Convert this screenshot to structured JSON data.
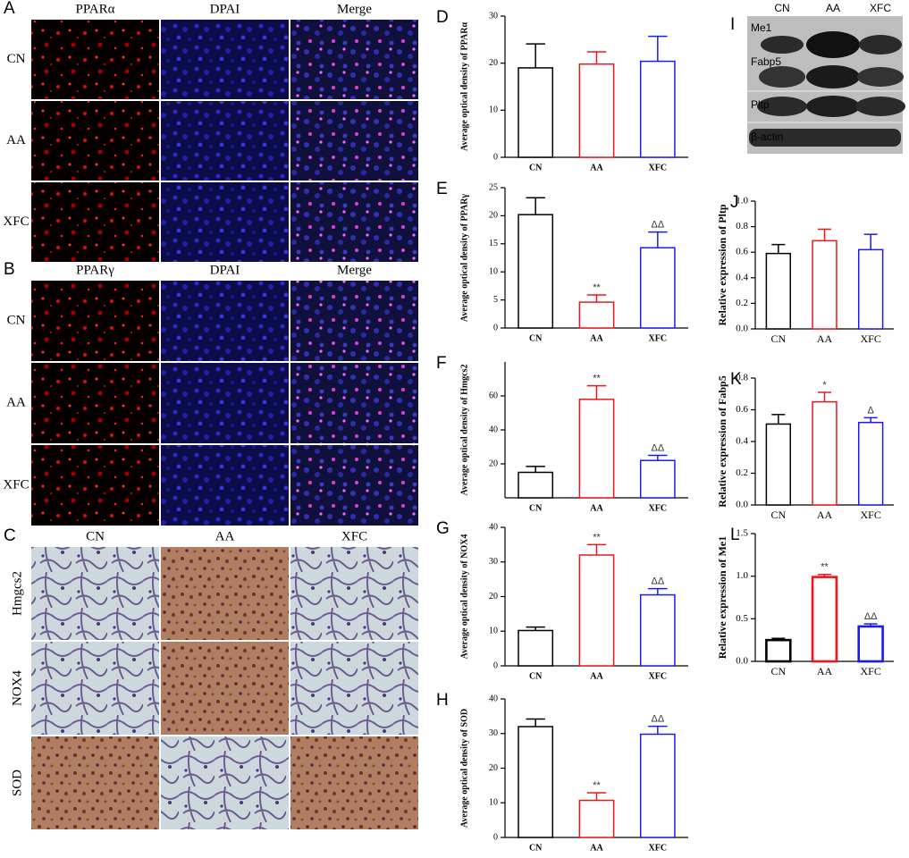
{
  "micrographs": [
    {
      "letter": "A",
      "columns": [
        "PPARα",
        "DPAI",
        "Merge"
      ],
      "rows": [
        "CN",
        "AA",
        "XFC"
      ]
    },
    {
      "letter": "B",
      "columns": [
        "PPARγ",
        "DPAI",
        "Merge"
      ],
      "rows": [
        "CN",
        "AA",
        "XFC"
      ]
    },
    {
      "letter": "C",
      "columns": [
        "CN",
        "AA",
        "XFC"
      ],
      "rows": [
        "Hmgcs2",
        "NOX4",
        "SOD"
      ]
    }
  ],
  "blot": {
    "letter": "I",
    "lanes": [
      "CN",
      "AA",
      "XFC"
    ],
    "bands": [
      "Me1",
      "Fabp5",
      "Pltp",
      "β-actin"
    ]
  },
  "chart_data": [
    {
      "type": "bar",
      "panel": "D",
      "ylabel": "Average optical density of PPARα",
      "categories": [
        "CN",
        "AA",
        "XFC"
      ],
      "values": [
        19,
        19.8,
        20.4
      ],
      "errors": [
        5.1,
        2.6,
        5.3
      ],
      "colors": [
        "#000000",
        "#e8191e",
        "#1b1bf0"
      ],
      "ylim": [
        0,
        30
      ],
      "yticks": [
        0,
        10,
        20,
        30
      ]
    },
    {
      "type": "bar",
      "panel": "E",
      "ylabel": "Average optical density of PPARγ",
      "categories": [
        "CN",
        "AA",
        "XFC"
      ],
      "values": [
        20.2,
        4.6,
        14.3
      ],
      "errors": [
        3,
        1.3,
        2.8
      ],
      "colors": [
        "#000000",
        "#e8191e",
        "#1b1bf0"
      ],
      "annotations": [
        null,
        "**",
        "ΔΔ"
      ],
      "ylim": [
        0,
        25
      ],
      "yticks": [
        0,
        5,
        10,
        15,
        20,
        25
      ]
    },
    {
      "type": "bar",
      "panel": "F",
      "ylabel": "Average optical density of Hmgcs2",
      "categories": [
        "CN",
        "AA",
        "XFC"
      ],
      "values": [
        15,
        58,
        22
      ],
      "errors": [
        3.5,
        8,
        3
      ],
      "colors": [
        "#000000",
        "#e8191e",
        "#1b1bf0"
      ],
      "annotations": [
        null,
        "**",
        "ΔΔ"
      ],
      "ylim": [
        0,
        80
      ],
      "yticks": [
        20,
        40,
        60
      ]
    },
    {
      "type": "bar",
      "panel": "G",
      "ylabel": "Average optical density of NOX4",
      "categories": [
        "CN",
        "AA",
        "XFC"
      ],
      "values": [
        10.2,
        32,
        20.5
      ],
      "errors": [
        1,
        3,
        1.8
      ],
      "colors": [
        "#000000",
        "#e8191e",
        "#1b1bf0"
      ],
      "annotations": [
        null,
        "**",
        "ΔΔ"
      ],
      "ylim": [
        0,
        40
      ],
      "yticks": [
        0,
        10,
        20,
        30,
        40
      ]
    },
    {
      "type": "bar",
      "panel": "H",
      "ylabel": "Average optical density of SOD",
      "categories": [
        "CN",
        "AA",
        "XFC"
      ],
      "values": [
        32,
        10.7,
        29.8
      ],
      "errors": [
        2.2,
        2.2,
        2.3
      ],
      "colors": [
        "#000000",
        "#e8191e",
        "#1b1bf0"
      ],
      "annotations": [
        null,
        "**",
        "ΔΔ"
      ],
      "ylim": [
        0,
        40
      ],
      "yticks": [
        0,
        10,
        20,
        30,
        40
      ]
    },
    {
      "type": "bar",
      "panel": "J",
      "ylabel": "Relative expression of Pltp",
      "categories": [
        "CN",
        "AA",
        "XFC"
      ],
      "values": [
        0.59,
        0.69,
        0.62
      ],
      "errors": [
        0.07,
        0.09,
        0.12
      ],
      "colors": [
        "#000000",
        "#e8191e",
        "#1b1bf0"
      ],
      "ylim": [
        0,
        1
      ],
      "yticks": [
        {
          "value": 0,
          "label": "0.0"
        },
        0.2,
        0.4,
        0.6,
        0.8,
        {
          "value": 1,
          "label": "1.0"
        }
      ]
    },
    {
      "type": "bar",
      "panel": "K",
      "ylabel": "Relative expression of Fabp5",
      "categories": [
        "CN",
        "AA",
        "XFC"
      ],
      "values": [
        0.51,
        0.65,
        0.52
      ],
      "errors": [
        0.06,
        0.06,
        0.03
      ],
      "colors": [
        "#000000",
        "#e8191e",
        "#1b1bf0"
      ],
      "annotations": [
        null,
        "*",
        "Δ"
      ],
      "ylim": [
        0,
        0.8
      ],
      "yticks": [
        {
          "value": 0,
          "label": "0.0"
        },
        0.2,
        0.4,
        0.6,
        0.8
      ]
    },
    {
      "type": "bar",
      "panel": "L",
      "ylabel": "Relative expression of Me1",
      "categories": [
        "CN",
        "AA",
        "XFC"
      ],
      "values": [
        0.25,
        0.99,
        0.41
      ],
      "errors": [
        0.02,
        0.03,
        0.03
      ],
      "colors": [
        "#000000",
        "#e8191e",
        "#1b1bf0"
      ],
      "annotations": [
        null,
        "**",
        "ΔΔ"
      ],
      "ylim": [
        0,
        1.5
      ],
      "yticks": [
        {
          "value": 0,
          "label": "0.0"
        },
        0.5,
        {
          "value": 1,
          "label": "1.0"
        },
        1.5
      ]
    }
  ]
}
